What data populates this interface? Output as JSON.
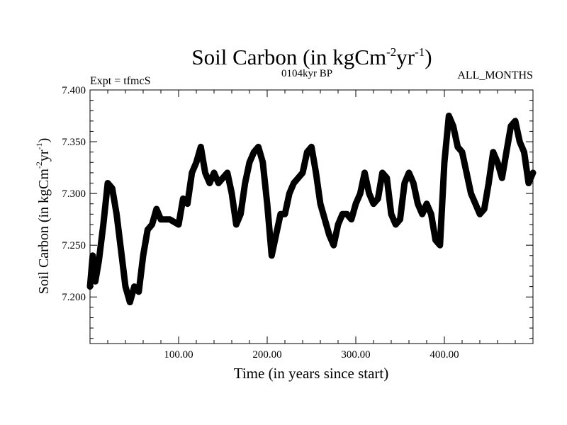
{
  "chart_data": {
    "type": "line",
    "title_main": "Soil Carbon (in kgCm",
    "title_sup1": "-2",
    "title_mid": "yr",
    "title_sup2": "-1",
    "title_end": ")",
    "subtitle_left": "Expt = tfmcS",
    "subtitle_center": "0104kyr BP",
    "subtitle_right": "ALL_MONTHS",
    "xlabel": "Time (in years since start)",
    "ylabel_main": "Soil Carbon (in kgCm",
    "ylabel_sup1": "-2",
    "ylabel_mid": "yr",
    "ylabel_sup2": "-1",
    "ylabel_end": ")",
    "xlim": [
      0,
      500
    ],
    "ylim": [
      7.155,
      7.4
    ],
    "x_ticks": [
      100,
      200,
      300,
      400
    ],
    "x_tick_labels": [
      "100.00",
      "200.00",
      "300.00",
      "400.00"
    ],
    "y_ticks": [
      7.2,
      7.25,
      7.3,
      7.35,
      7.4
    ],
    "y_tick_labels": [
      "7.200",
      "7.250",
      "7.300",
      "7.350",
      "7.400"
    ],
    "grid": false,
    "line_color": "#000000",
    "series": [
      {
        "x": [
          0,
          3,
          6,
          10,
          15,
          20,
          25,
          30,
          35,
          40,
          45,
          50,
          55,
          60,
          65,
          70,
          75,
          80,
          90,
          100,
          105,
          110,
          115,
          120,
          125,
          130,
          135,
          140,
          145,
          150,
          155,
          160,
          165,
          170,
          175,
          180,
          185,
          190,
          195,
          200,
          205,
          210,
          215,
          220,
          225,
          230,
          235,
          240,
          245,
          250,
          255,
          260,
          265,
          270,
          275,
          280,
          285,
          290,
          295,
          300,
          305,
          310,
          315,
          320,
          325,
          330,
          335,
          340,
          345,
          350,
          355,
          360,
          365,
          370,
          375,
          380,
          385,
          390,
          395,
          400,
          405,
          410,
          415,
          420,
          425,
          430,
          435,
          440,
          445,
          450,
          455,
          460,
          465,
          470,
          475,
          480,
          485,
          490,
          495,
          500
        ],
        "y": [
          7.21,
          7.24,
          7.215,
          7.235,
          7.27,
          7.31,
          7.305,
          7.28,
          7.245,
          7.21,
          7.195,
          7.21,
          7.205,
          7.24,
          7.265,
          7.27,
          7.285,
          7.275,
          7.275,
          7.27,
          7.295,
          7.29,
          7.32,
          7.33,
          7.345,
          7.32,
          7.31,
          7.32,
          7.31,
          7.315,
          7.32,
          7.3,
          7.27,
          7.28,
          7.31,
          7.33,
          7.34,
          7.345,
          7.33,
          7.29,
          7.24,
          7.26,
          7.28,
          7.28,
          7.3,
          7.31,
          7.315,
          7.32,
          7.34,
          7.345,
          7.32,
          7.29,
          7.275,
          7.26,
          7.25,
          7.27,
          7.28,
          7.28,
          7.275,
          7.29,
          7.3,
          7.32,
          7.3,
          7.29,
          7.295,
          7.32,
          7.315,
          7.28,
          7.27,
          7.275,
          7.31,
          7.32,
          7.31,
          7.29,
          7.28,
          7.29,
          7.28,
          7.255,
          7.25,
          7.33,
          7.375,
          7.365,
          7.345,
          7.34,
          7.32,
          7.3,
          7.29,
          7.28,
          7.285,
          7.31,
          7.34,
          7.33,
          7.315,
          7.34,
          7.365,
          7.37,
          7.35,
          7.34,
          7.31,
          7.32
        ]
      }
    ]
  }
}
